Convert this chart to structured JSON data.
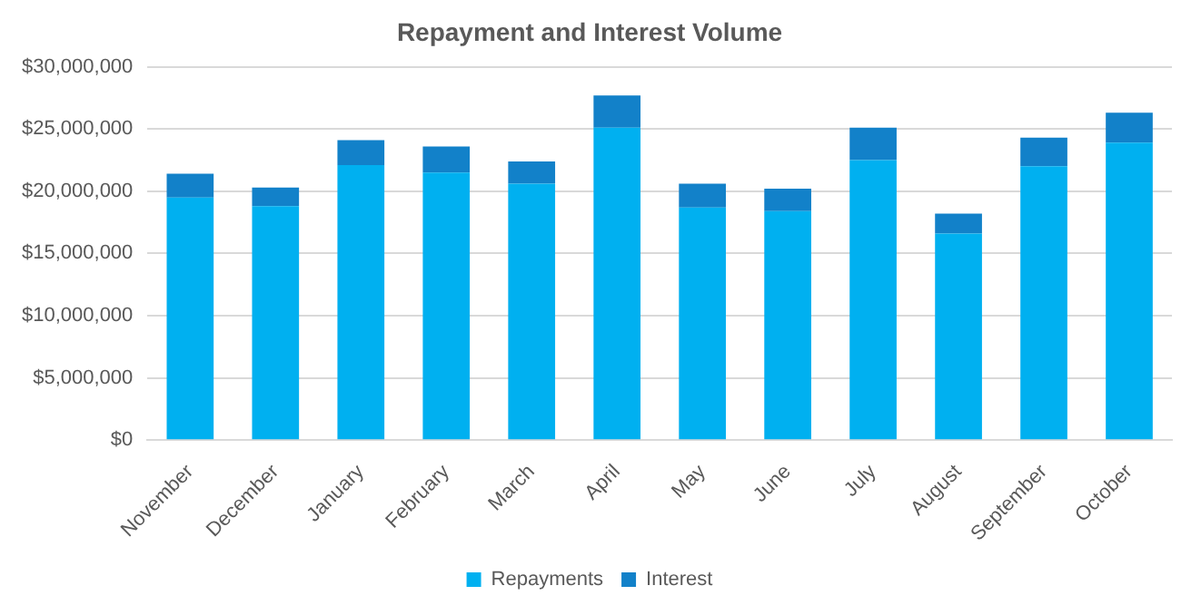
{
  "chart_data": {
    "type": "bar",
    "title": "Repayment and Interest Volume",
    "stacked": true,
    "categories": [
      "November",
      "December",
      "January",
      "February",
      "March",
      "April",
      "May",
      "June",
      "July",
      "August",
      "September",
      "October"
    ],
    "series": [
      {
        "name": "Repayments",
        "color": "#00b0f0",
        "values": [
          19500000,
          18800000,
          22100000,
          21500000,
          20600000,
          25100000,
          18700000,
          18400000,
          22500000,
          16600000,
          22000000,
          23900000
        ]
      },
      {
        "name": "Interest",
        "color": "#1281c9",
        "values": [
          1900000,
          1500000,
          2000000,
          2100000,
          1800000,
          2600000,
          1900000,
          1800000,
          2600000,
          1600000,
          2300000,
          2400000
        ]
      }
    ],
    "ylim": [
      0,
      30000000
    ],
    "yticks": [
      {
        "value": 0,
        "label": "$0"
      },
      {
        "value": 5000000,
        "label": "$5,000,000"
      },
      {
        "value": 10000000,
        "label": "$10,000,000"
      },
      {
        "value": 15000000,
        "label": "$15,000,000"
      },
      {
        "value": 20000000,
        "label": "$20,000,000"
      },
      {
        "value": 25000000,
        "label": "$25,000,000"
      },
      {
        "value": 30000000,
        "label": "$30,000,000"
      }
    ],
    "grid": "y",
    "legend": "bottom"
  }
}
